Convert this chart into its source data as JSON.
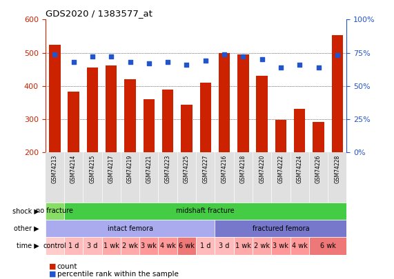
{
  "title": "GDS2020 / 1383577_at",
  "samples": [
    "GSM74213",
    "GSM74214",
    "GSM74215",
    "GSM74217",
    "GSM74219",
    "GSM74221",
    "GSM74223",
    "GSM74225",
    "GSM74227",
    "GSM74216",
    "GSM74218",
    "GSM74220",
    "GSM74222",
    "GSM74224",
    "GSM74226",
    "GSM74228"
  ],
  "counts": [
    524,
    384,
    455,
    462,
    420,
    361,
    389,
    344,
    411,
    499,
    496,
    431,
    298,
    331,
    292,
    553
  ],
  "percentiles": [
    74,
    68,
    72,
    72,
    68,
    67,
    68,
    66,
    69,
    74,
    72,
    70,
    64,
    66,
    64,
    73
  ],
  "ymin": 200,
  "ymax": 600,
  "yticks": [
    200,
    300,
    400,
    500,
    600
  ],
  "yright_ticks": [
    0,
    25,
    50,
    75,
    100
  ],
  "bar_color": "#cc2200",
  "dot_color": "#2255cc",
  "shock_row": [
    {
      "label": "no fracture",
      "start": 0,
      "end": 1,
      "color": "#88dd66"
    },
    {
      "label": "midshaft fracture",
      "start": 1,
      "end": 16,
      "color": "#44cc44"
    }
  ],
  "other_row": [
    {
      "label": "intact femora",
      "start": 0,
      "end": 9,
      "color": "#aaaaee"
    },
    {
      "label": "fractured femora",
      "start": 9,
      "end": 16,
      "color": "#7777cc"
    }
  ],
  "time_row": [
    {
      "label": "control",
      "start": 0,
      "end": 1,
      "color": "#ffcccc"
    },
    {
      "label": "1 d",
      "start": 1,
      "end": 2,
      "color": "#ffbbbb"
    },
    {
      "label": "3 d",
      "start": 2,
      "end": 3,
      "color": "#ffbbbb"
    },
    {
      "label": "1 wk",
      "start": 3,
      "end": 4,
      "color": "#ffaaaa"
    },
    {
      "label": "2 wk",
      "start": 4,
      "end": 5,
      "color": "#ffaaaa"
    },
    {
      "label": "3 wk",
      "start": 5,
      "end": 6,
      "color": "#ff9999"
    },
    {
      "label": "4 wk",
      "start": 6,
      "end": 7,
      "color": "#ff9999"
    },
    {
      "label": "6 wk",
      "start": 7,
      "end": 8,
      "color": "#ee7777"
    },
    {
      "label": "1 d",
      "start": 8,
      "end": 9,
      "color": "#ffbbbb"
    },
    {
      "label": "3 d",
      "start": 9,
      "end": 10,
      "color": "#ffbbbb"
    },
    {
      "label": "1 wk",
      "start": 10,
      "end": 11,
      "color": "#ffaaaa"
    },
    {
      "label": "2 wk",
      "start": 11,
      "end": 12,
      "color": "#ffaaaa"
    },
    {
      "label": "3 wk",
      "start": 12,
      "end": 13,
      "color": "#ff9999"
    },
    {
      "label": "4 wk",
      "start": 13,
      "end": 14,
      "color": "#ff9999"
    },
    {
      "label": "6 wk",
      "start": 14,
      "end": 16,
      "color": "#ee7777"
    }
  ],
  "row_labels": [
    "shock",
    "other",
    "time"
  ],
  "row_label_color": "#000000",
  "grid_color": "#000000",
  "background_color": "#ffffff",
  "tick_label_color_left": "#cc2200",
  "tick_label_color_right": "#2255cc"
}
